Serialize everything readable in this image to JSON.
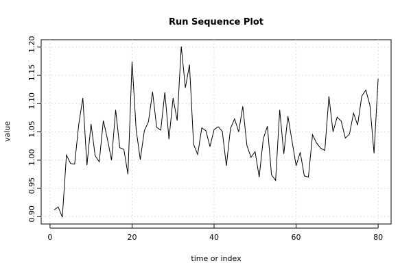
{
  "chart_data": {
    "type": "line",
    "title": "Run Sequence Plot",
    "x_label": "time or index",
    "y_label": "value",
    "x": [
      1,
      2,
      3,
      4,
      5,
      6,
      7,
      8,
      9,
      10,
      11,
      12,
      13,
      14,
      15,
      16,
      17,
      18,
      19,
      20,
      21,
      22,
      23,
      24,
      25,
      26,
      27,
      28,
      29,
      30,
      31,
      32,
      33,
      34,
      35,
      36,
      37,
      38,
      39,
      40,
      41,
      42,
      43,
      44,
      45,
      46,
      47,
      48,
      49,
      50,
      51,
      52,
      53,
      54,
      55,
      56,
      57,
      58,
      59,
      60,
      61,
      62,
      63,
      64,
      65,
      66,
      67,
      68,
      69,
      70,
      71,
      72,
      73,
      74,
      75,
      76,
      77,
      78,
      79,
      80
    ],
    "values": [
      0.912,
      0.917,
      0.899,
      1.009,
      0.994,
      0.993,
      1.063,
      1.11,
      0.991,
      1.064,
      1.008,
      0.997,
      1.07,
      1.037,
      1.0,
      1.089,
      1.022,
      1.019,
      0.975,
      1.174,
      1.054,
      1.001,
      1.052,
      1.068,
      1.121,
      1.058,
      1.053,
      1.12,
      1.037,
      1.11,
      1.07,
      1.201,
      1.128,
      1.169,
      1.028,
      1.01,
      1.057,
      1.052,
      1.024,
      1.054,
      1.059,
      1.051,
      0.99,
      1.056,
      1.073,
      1.05,
      1.095,
      1.026,
      1.005,
      1.015,
      0.97,
      1.038,
      1.06,
      0.974,
      0.964,
      1.089,
      1.011,
      1.078,
      1.034,
      0.99,
      1.014,
      0.972,
      0.97,
      1.045,
      1.03,
      1.021,
      1.017,
      1.113,
      1.05,
      1.076,
      1.069,
      1.039,
      1.046,
      1.083,
      1.062,
      1.113,
      1.124,
      1.097,
      1.012,
      1.144
    ],
    "color": "#000000",
    "xlim": [
      -2.16,
      83.16
    ],
    "xticks": [
      0,
      20,
      40,
      60,
      80
    ],
    "ylim": [
      0.887,
      1.213
    ],
    "yticks": [
      {
        "value": 0.9,
        "label": "0.90"
      },
      {
        "value": 0.95,
        "label": "0.95"
      },
      {
        "value": 1.0,
        "label": "1.00"
      },
      {
        "value": 1.05,
        "label": "1.05"
      },
      {
        "value": 1.1,
        "label": "1.10"
      },
      {
        "value": 1.15,
        "label": "1.15"
      },
      {
        "value": 1.2,
        "label": "1.20"
      }
    ],
    "grid": true
  }
}
